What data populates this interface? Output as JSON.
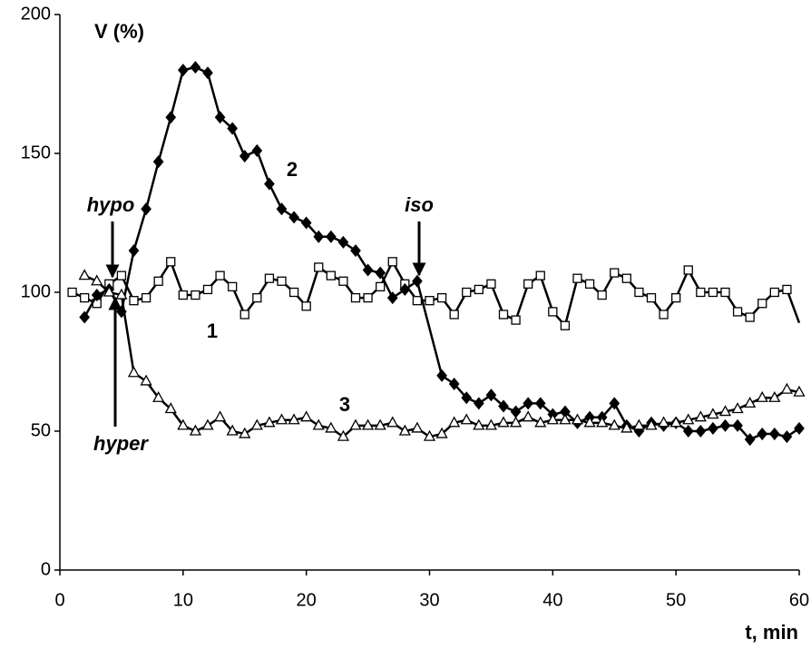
{
  "chart_data": {
    "type": "line",
    "ylabel": "V (%)",
    "xlabel": "t, min",
    "xlim": [
      0,
      60
    ],
    "xticks": [
      0,
      10,
      20,
      30,
      40,
      50,
      60
    ],
    "ylim": [
      0,
      200
    ],
    "yticks": [
      0,
      50,
      100,
      150,
      200
    ],
    "grid": false,
    "annotations": [
      "hypo",
      "iso",
      "hyper"
    ],
    "series": [
      {
        "name": "1",
        "color": "#000000",
        "marker": "square",
        "marker_fill": "#ffffff",
        "x": [
          1,
          2,
          3,
          4,
          5,
          6,
          7,
          8,
          9,
          10,
          11,
          12,
          13,
          14,
          15,
          16,
          17,
          18,
          19,
          20,
          21,
          22,
          23,
          24,
          25,
          26,
          27,
          28,
          29,
          30,
          31,
          32,
          33,
          34,
          35,
          36,
          37,
          38,
          39,
          40,
          41,
          42,
          43,
          44,
          45,
          46,
          47,
          48,
          49,
          50,
          51,
          52,
          53,
          54,
          55,
          56,
          57,
          58,
          59,
          60
        ],
        "values": [
          100,
          98,
          96,
          103,
          106,
          97,
          98,
          104,
          111,
          99,
          99,
          101,
          106,
          102,
          92,
          98,
          105,
          104,
          100,
          95,
          109,
          106,
          104,
          98,
          98,
          102,
          111,
          103,
          97,
          97,
          98,
          92,
          100,
          101,
          103,
          92,
          90,
          103,
          106,
          93,
          88,
          105,
          103,
          99,
          107,
          105,
          100,
          98,
          92,
          98,
          108,
          100,
          100,
          100,
          93,
          91,
          96,
          100,
          101,
          89
        ]
      },
      {
        "name": "2",
        "color": "#000000",
        "marker": "diamond",
        "marker_fill": "#000000",
        "x": [
          2,
          3,
          4,
          5,
          6,
          7,
          8,
          9,
          10,
          11,
          12,
          13,
          14,
          15,
          16,
          17,
          18,
          19,
          20,
          21,
          22,
          23,
          24,
          25,
          26,
          27,
          28,
          29,
          31,
          32,
          33,
          34,
          35,
          36,
          37,
          38,
          39,
          40,
          41,
          42,
          43,
          44,
          45,
          46,
          47,
          48,
          49,
          50,
          51,
          52,
          53,
          54,
          55,
          56,
          57,
          58,
          59,
          60
        ],
        "values": [
          91,
          99,
          101,
          93,
          115,
          130,
          147,
          163,
          180,
          181,
          179,
          163,
          159,
          149,
          151,
          139,
          130,
          127,
          125,
          120,
          120,
          118,
          115,
          108,
          107,
          98,
          101,
          104,
          70,
          67,
          62,
          60,
          63,
          59,
          57,
          60,
          60,
          56,
          57,
          53,
          55,
          55,
          60,
          52,
          50,
          53,
          52,
          53,
          50,
          50,
          51,
          52,
          52,
          47,
          49,
          49,
          48,
          51
        ]
      },
      {
        "name": "3",
        "color": "#000000",
        "marker": "triangle",
        "marker_fill": "#ffffff",
        "x": [
          2,
          3,
          4,
          5,
          6,
          7,
          8,
          9,
          10,
          11,
          12,
          13,
          14,
          15,
          16,
          17,
          18,
          19,
          20,
          21,
          22,
          23,
          24,
          25,
          26,
          27,
          28,
          29,
          30,
          31,
          32,
          33,
          34,
          35,
          36,
          37,
          38,
          39,
          40,
          41,
          42,
          43,
          44,
          45,
          46,
          47,
          48,
          49,
          50,
          51,
          52,
          53,
          54,
          55,
          56,
          57,
          58,
          59,
          60
        ],
        "values": [
          106,
          104,
          100,
          99,
          71,
          68,
          62,
          58,
          52,
          50,
          52,
          55,
          50,
          49,
          52,
          53,
          54,
          54,
          55,
          52,
          51,
          48,
          52,
          52,
          52,
          53,
          50,
          51,
          48,
          49,
          53,
          54,
          52,
          52,
          53,
          53,
          55,
          53,
          54,
          54,
          54,
          53,
          53,
          52,
          51,
          52,
          52,
          53,
          53,
          54,
          55,
          56,
          57,
          58,
          60,
          62,
          62,
          65,
          64
        ]
      }
    ]
  }
}
